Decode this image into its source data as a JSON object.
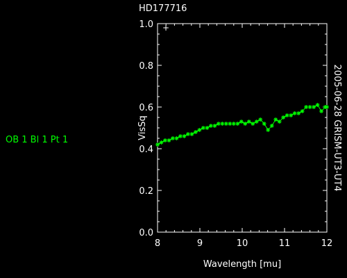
{
  "side_label": "OB 1 Bl 1 Pt 1",
  "chart_data": {
    "type": "line",
    "title": "HD177716",
    "xlabel": "Wavelength [mu]",
    "ylabel": "VisSq",
    "right_label": "2005-06-28 GRISM-UT3-UT4",
    "xlim": [
      8,
      12
    ],
    "ylim": [
      0.0,
      1.0
    ],
    "x_ticks": [
      "8",
      "9",
      "10",
      "11",
      "12"
    ],
    "y_ticks": [
      "0.0",
      "0.2",
      "0.4",
      "0.6",
      "0.8",
      "1.0"
    ],
    "top_left_marker": "+",
    "grid": false,
    "series": [
      {
        "color": "#00ff00",
        "marker": "star",
        "x": [
          8.0,
          8.09,
          8.18,
          8.27,
          8.36,
          8.45,
          8.54,
          8.63,
          8.72,
          8.81,
          8.9,
          8.99,
          9.08,
          9.17,
          9.26,
          9.35,
          9.44,
          9.53,
          9.62,
          9.71,
          9.8,
          9.89,
          9.98,
          10.07,
          10.16,
          10.25,
          10.34,
          10.43,
          10.52,
          10.61,
          10.7,
          10.79,
          10.88,
          10.97,
          11.06,
          11.15,
          11.24,
          11.33,
          11.42,
          11.51,
          11.6,
          11.69,
          11.78,
          11.87,
          11.96,
          12.0
        ],
        "y": [
          0.42,
          0.43,
          0.44,
          0.44,
          0.45,
          0.45,
          0.46,
          0.46,
          0.47,
          0.47,
          0.48,
          0.49,
          0.5,
          0.5,
          0.51,
          0.51,
          0.52,
          0.52,
          0.52,
          0.52,
          0.52,
          0.52,
          0.53,
          0.52,
          0.53,
          0.52,
          0.53,
          0.54,
          0.52,
          0.49,
          0.51,
          0.54,
          0.53,
          0.55,
          0.56,
          0.56,
          0.57,
          0.57,
          0.58,
          0.6,
          0.6,
          0.6,
          0.61,
          0.58,
          0.6,
          0.6
        ]
      }
    ]
  }
}
